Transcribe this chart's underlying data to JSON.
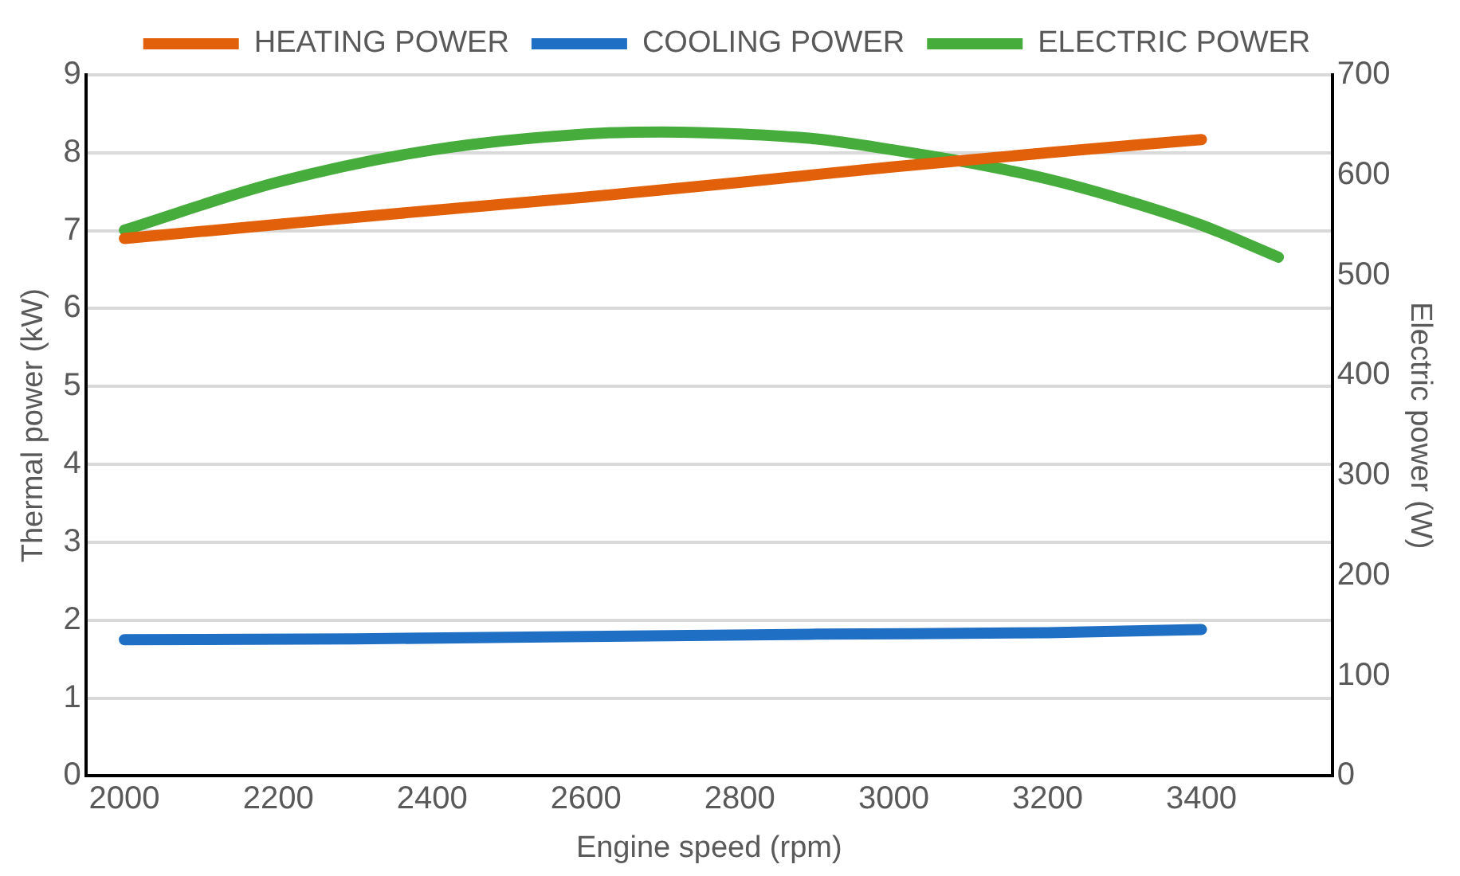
{
  "chart_data": {
    "type": "line",
    "xlabel": "Engine speed (rpm)",
    "ylabel": "Thermal power (kW)",
    "y2label": "Electric power (W)",
    "xlim": [
      1950,
      3570
    ],
    "xticks": [
      2000,
      2200,
      2400,
      2600,
      2800,
      3000,
      3200,
      3400
    ],
    "ylim": [
      0,
      9
    ],
    "yticks": [
      0,
      1,
      2,
      3,
      4,
      5,
      6,
      7,
      8,
      9
    ],
    "y2lim": [
      0,
      700
    ],
    "y2ticks": [
      0,
      100,
      200,
      300,
      400,
      500,
      600,
      700
    ],
    "grid": "y",
    "legend": "top",
    "series": [
      {
        "name": "HEATING POWER",
        "color": "#e2600a",
        "x": [
          2000,
          2200,
          2400,
          2600,
          2800,
          3000,
          3200,
          3400
        ],
        "values": [
          6.9,
          7.08,
          7.26,
          7.43,
          7.62,
          7.82,
          8.0,
          8.17
        ]
      },
      {
        "name": "COOLING POWER",
        "color": "#1f6fc5",
        "x": [
          2000,
          2300,
          2600,
          2900,
          3200,
          3400
        ],
        "values": [
          1.75,
          1.76,
          1.79,
          1.82,
          1.84,
          1.88
        ]
      },
      {
        "name": "ELECTRIC POWER",
        "color": "#46ad3c",
        "axis": "y2",
        "x": [
          2000,
          2200,
          2400,
          2600,
          2700,
          2800,
          2900,
          3000,
          3100,
          3200,
          3300,
          3400,
          3500
        ],
        "values": [
          545,
          593,
          625,
          641,
          643,
          641,
          636,
          625,
          612,
          596,
          575,
          550,
          518
        ]
      }
    ]
  }
}
